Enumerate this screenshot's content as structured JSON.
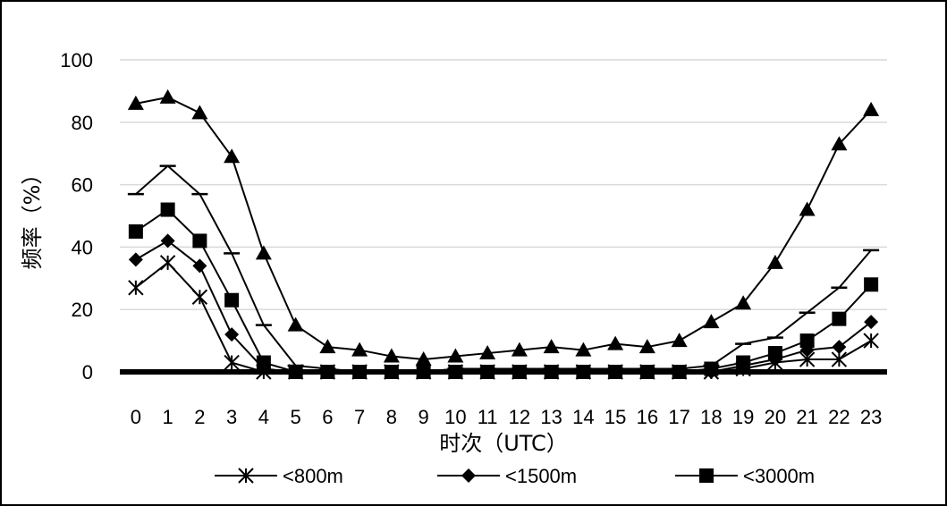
{
  "chart_data": {
    "type": "line",
    "xlabel": "时次（UTC）",
    "ylabel": "频率（%）",
    "ylim": [
      0,
      100
    ],
    "yticks": [
      0,
      20,
      40,
      60,
      80,
      100
    ],
    "x": [
      "0",
      "1",
      "2",
      "3",
      "4",
      "5",
      "6",
      "7",
      "8",
      "9",
      "10",
      "11",
      "12",
      "13",
      "14",
      "15",
      "16",
      "17",
      "18",
      "19",
      "20",
      "21",
      "22",
      "23"
    ],
    "grid": true,
    "legend_position": "bottom",
    "series": [
      {
        "name": "<800m",
        "marker": "asterisk",
        "values": [
          27,
          35,
          24,
          3,
          0,
          0,
          0,
          0,
          0,
          0,
          0,
          0,
          0,
          0,
          0,
          0,
          0,
          0,
          0,
          1,
          3,
          4,
          4,
          10
        ]
      },
      {
        "name": "<1500m",
        "marker": "diamond",
        "values": [
          36,
          42,
          34,
          12,
          1,
          0,
          0,
          0,
          0,
          0,
          0,
          0,
          0,
          0,
          0,
          0,
          0,
          0,
          0,
          2,
          4,
          7,
          8,
          16
        ]
      },
      {
        "name": "<3000m",
        "marker": "square",
        "values": [
          45,
          52,
          42,
          23,
          3,
          0,
          0,
          0,
          0,
          0,
          0,
          0,
          0,
          0,
          0,
          0,
          0,
          0,
          1,
          3,
          6,
          10,
          17,
          28
        ]
      },
      {
        "name": "",
        "marker": "dash",
        "values": [
          57,
          66,
          57,
          38,
          15,
          2,
          1,
          0,
          0,
          0,
          1,
          1,
          1,
          1,
          1,
          1,
          1,
          1,
          2,
          9,
          11,
          19,
          27,
          39
        ]
      },
      {
        "name": "",
        "marker": "triangle",
        "values": [
          86,
          88,
          83,
          69,
          38,
          15,
          8,
          7,
          5,
          4,
          5,
          6,
          7,
          8,
          7,
          9,
          8,
          10,
          16,
          22,
          35,
          52,
          73,
          84
        ]
      }
    ]
  }
}
